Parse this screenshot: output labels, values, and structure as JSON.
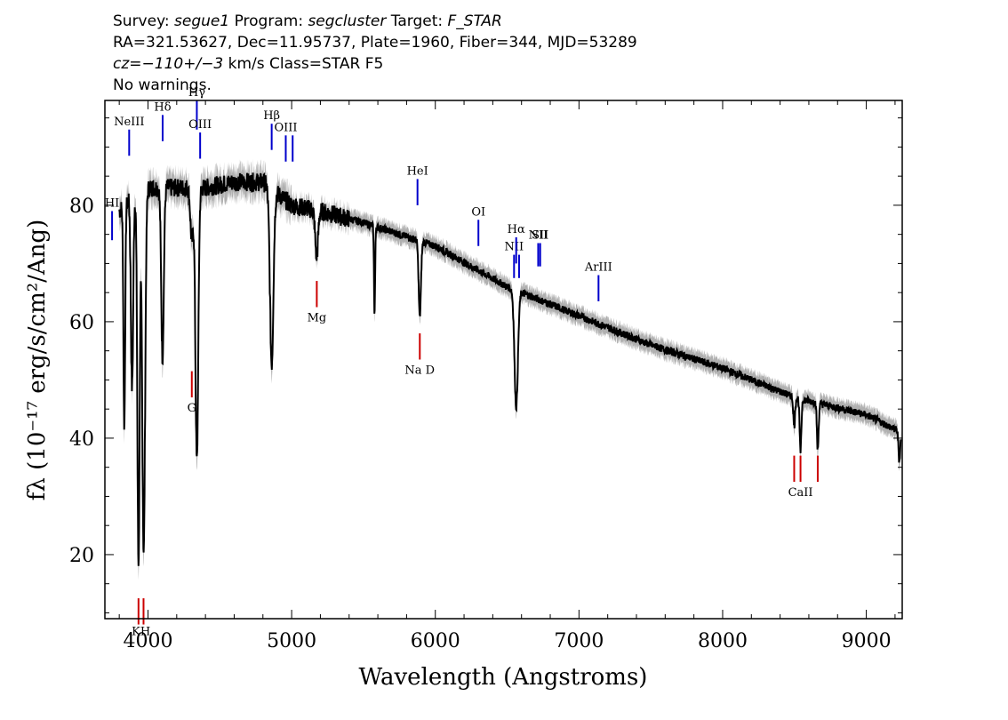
{
  "header": {
    "line1_a": "Survey: ",
    "survey": "segue1",
    "line1_b": " Program: ",
    "program": "segcluster",
    "line1_c": " Target: ",
    "target": "F_STAR",
    "line2": "RA=321.53627, Dec=11.95737, Plate=1960, Fiber=344, MJD=53289",
    "cz_label": "cz",
    "cz_value": "=−110+/−3",
    "line3_rest": " km/s Class=STAR F5",
    "line4": "No warnings."
  },
  "chart_data": {
    "type": "line",
    "xlabel": "Wavelength (Angstroms)",
    "ylabel": "fλ (10⁻¹⁷ erg/s/cm²/Ang)",
    "xlim": [
      3700,
      9250
    ],
    "ylim": [
      9,
      98
    ],
    "x_ticks": [
      4000,
      5000,
      6000,
      7000,
      8000,
      9000
    ],
    "x_tick_labels": [
      "4000",
      "5000",
      "6000",
      "7000",
      "8000",
      "9000"
    ],
    "y_ticks": [
      20,
      40,
      60,
      80
    ],
    "y_tick_labels": [
      "20",
      "40",
      "60",
      "80"
    ],
    "series": [
      {
        "color": "#000000",
        "continuum": [
          [
            3800,
            79
          ],
          [
            3900,
            82
          ],
          [
            4000,
            83
          ],
          [
            4200,
            83
          ],
          [
            4400,
            83
          ],
          [
            4600,
            84
          ],
          [
            4800,
            84
          ],
          [
            5000,
            80
          ],
          [
            5200,
            79
          ],
          [
            5500,
            77
          ],
          [
            6000,
            73
          ],
          [
            6500,
            66
          ],
          [
            7000,
            61
          ],
          [
            7500,
            56
          ],
          [
            8000,
            52
          ],
          [
            8500,
            47
          ],
          [
            9000,
            44
          ],
          [
            9240,
            41
          ]
        ],
        "absorption": [
          {
            "center": 3835,
            "depth": 38,
            "width": 6
          },
          {
            "center": 3889,
            "depth": 33,
            "width": 8
          },
          {
            "center": 3934,
            "depth": 64,
            "width": 8
          },
          {
            "center": 3970,
            "depth": 62,
            "width": 10
          },
          {
            "center": 4101,
            "depth": 29,
            "width": 9
          },
          {
            "center": 4305,
            "depth": 9,
            "width": 10
          },
          {
            "center": 4340,
            "depth": 47,
            "width": 10
          },
          {
            "center": 4861,
            "depth": 30,
            "width": 12
          },
          {
            "center": 5174,
            "depth": 8,
            "width": 10
          },
          {
            "center": 5577,
            "depth": 15,
            "width": 4
          },
          {
            "center": 5892,
            "depth": 13,
            "width": 8
          },
          {
            "center": 6563,
            "depth": 20,
            "width": 12
          },
          {
            "center": 8498,
            "depth": 5,
            "width": 6
          },
          {
            "center": 8542,
            "depth": 9,
            "width": 6
          },
          {
            "center": 8662,
            "depth": 8,
            "width": 6
          },
          {
            "center": 9230,
            "depth": 5,
            "width": 6
          }
        ]
      },
      {
        "color": "#b0b0b0",
        "role": "error"
      }
    ],
    "emission_lines": [
      {
        "label": "HI",
        "wavelength": 3750,
        "y_top": 79,
        "y_bottom": 74,
        "color": "#0000cc"
      },
      {
        "label": "NeIII",
        "wavelength": 3869,
        "y_top": 93,
        "y_bottom": 88.5,
        "color": "#0000cc"
      },
      {
        "label": "Hδ",
        "wavelength": 4102,
        "y_top": 95.5,
        "y_bottom": 91,
        "color": "#0000cc"
      },
      {
        "label": "Hγ",
        "wavelength": 4340,
        "y_top": 98,
        "y_bottom": 93,
        "color": "#0000cc"
      },
      {
        "label": "OIII",
        "wavelength": 4363,
        "y_top": 92.5,
        "y_bottom": 88,
        "color": "#0000cc"
      },
      {
        "label": "Hβ",
        "wavelength": 4861,
        "y_top": 94,
        "y_bottom": 89.5,
        "color": "#0000cc"
      },
      {
        "label": "OIII",
        "wavelength": 4959,
        "y_top": 92,
        "y_bottom": 87.5,
        "color": "#0000cc"
      },
      {
        "label": "",
        "wavelength": 5007,
        "y_top": 92,
        "y_bottom": 87.5,
        "color": "#0000cc"
      },
      {
        "label": "HeI",
        "wavelength": 5876,
        "y_top": 84.5,
        "y_bottom": 80,
        "color": "#0000cc"
      },
      {
        "label": "OI",
        "wavelength": 6300,
        "y_top": 77.5,
        "y_bottom": 73,
        "color": "#0000cc"
      },
      {
        "label": "NII",
        "wavelength": 6548,
        "y_top": 71.5,
        "y_bottom": 67.5,
        "color": "#0000cc"
      },
      {
        "label": "Hα",
        "wavelength": 6563,
        "y_top": 74.5,
        "y_bottom": 70,
        "color": "#0000cc"
      },
      {
        "label": "",
        "wavelength": 6583,
        "y_top": 71.5,
        "y_bottom": 67.5,
        "color": "#0000cc"
      },
      {
        "label": "NII",
        "wavelength": 6716,
        "y_top": 73.5,
        "y_bottom": 69.5,
        "color": "#0000cc"
      },
      {
        "label": "SII",
        "wavelength": 6730,
        "y_top": 73.5,
        "y_bottom": 69.5,
        "color": "#0000cc"
      },
      {
        "label": "ArIII",
        "wavelength": 7136,
        "y_top": 68,
        "y_bottom": 63.5,
        "color": "#0000cc"
      }
    ],
    "absorption_markers": [
      {
        "label": "K",
        "wavelength": 3934,
        "y_top": 12.5,
        "y_bottom": 8,
        "color": "#cc0000"
      },
      {
        "label": "H",
        "wavelength": 3969,
        "y_top": 12.5,
        "y_bottom": 8,
        "color": "#cc0000"
      },
      {
        "label": "G",
        "wavelength": 4305,
        "y_top": 51.5,
        "y_bottom": 47,
        "color": "#cc0000"
      },
      {
        "label": "Mg",
        "wavelength": 5175,
        "y_top": 67,
        "y_bottom": 62.5,
        "color": "#cc0000"
      },
      {
        "label": "Na D",
        "wavelength": 5892,
        "y_top": 58,
        "y_bottom": 53.5,
        "color": "#cc0000"
      },
      {
        "label": "",
        "wavelength": 8498,
        "y_top": 37,
        "y_bottom": 32.5,
        "color": "#cc0000"
      },
      {
        "label": "CaII",
        "wavelength": 8542,
        "y_top": 37,
        "y_bottom": 32.5,
        "color": "#cc0000"
      },
      {
        "label": "",
        "wavelength": 8662,
        "y_top": 37,
        "y_bottom": 32.5,
        "color": "#cc0000"
      }
    ]
  }
}
